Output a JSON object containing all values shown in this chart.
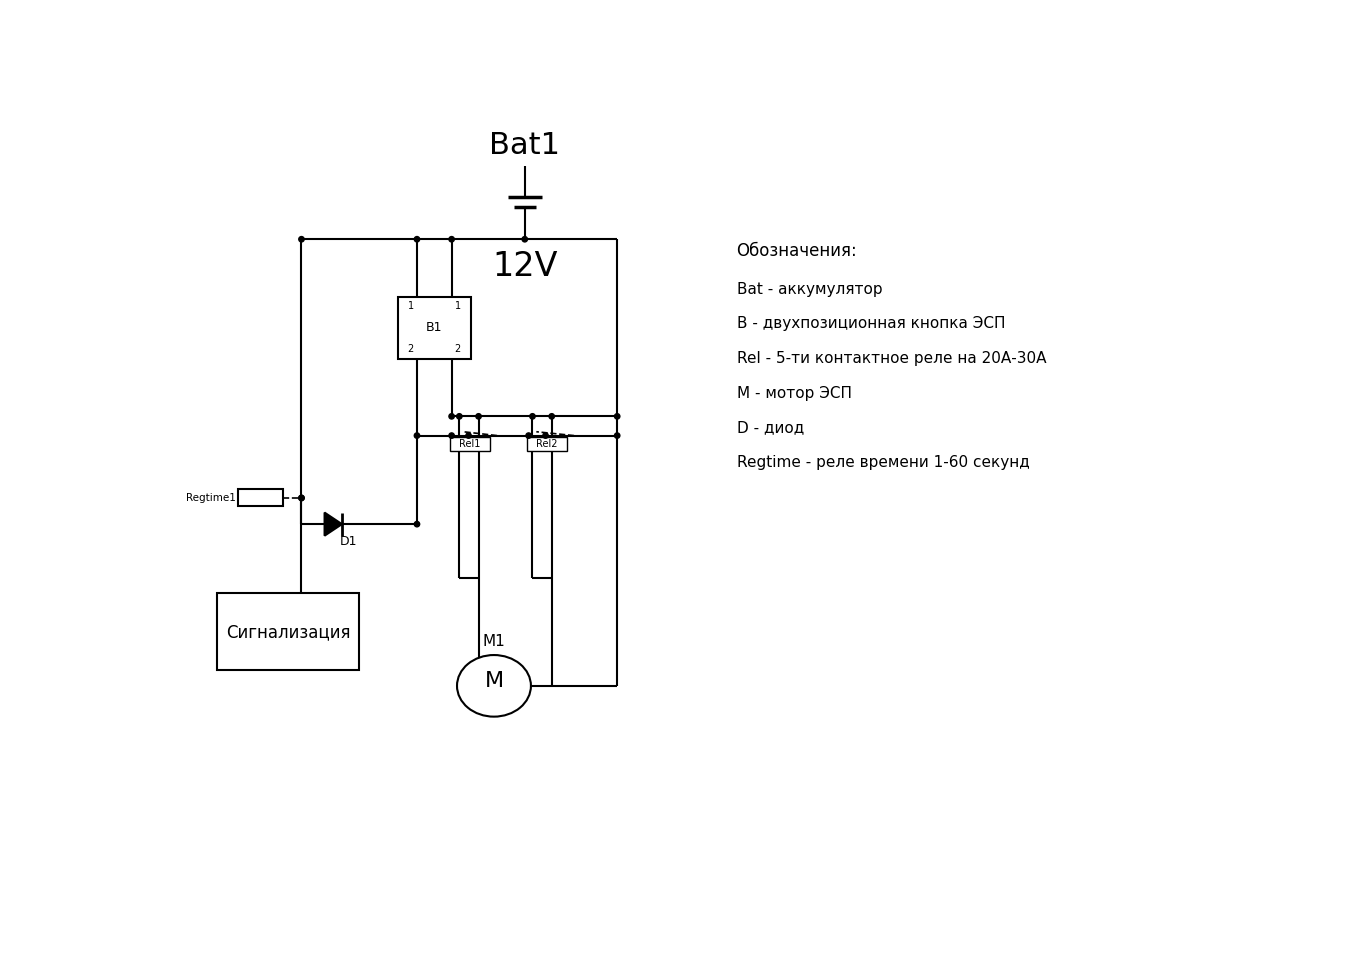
{
  "bg_color": "#ffffff",
  "line_color": "#000000",
  "legend_lines": [
    "Обозначения:",
    "Bat - аккумулятор",
    "B - двухпозиционная кнопка ЭСП",
    "Rel - 5-ти контактное реле на 20А-30А",
    "M - мотор ЭСП",
    "D - диод",
    "Regtime - реле времени 1-60 секунд"
  ]
}
